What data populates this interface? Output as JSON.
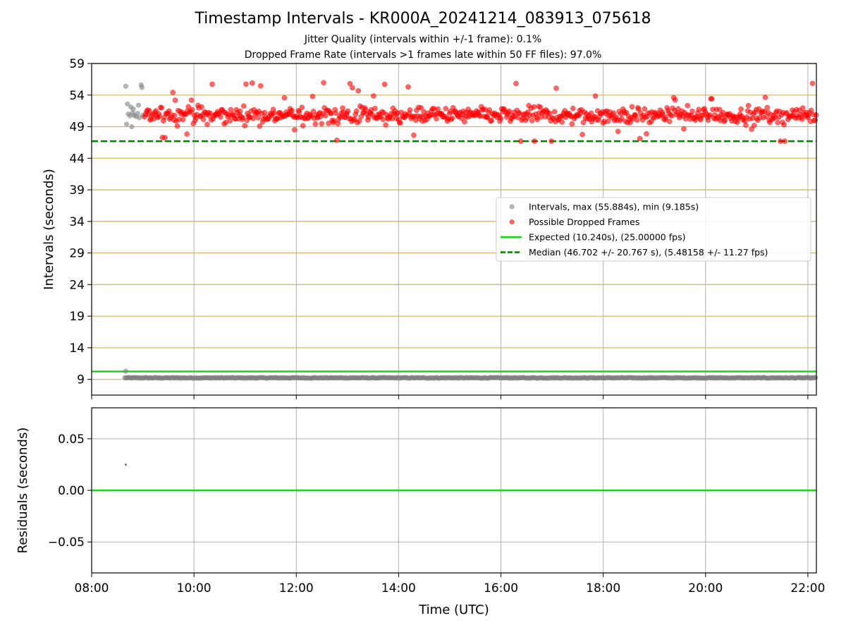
{
  "title": "Timestamp Intervals - KR000A_20241214_083913_075618",
  "subtitle_1": "Jitter Quality (intervals within +/-1 frame): 0.1%",
  "subtitle_2": "Dropped Frame Rate (intervals >1 frames late within 50 FF files): 97.0%",
  "colors": {
    "intervals": "#808080",
    "dropped": "#ff0000",
    "expected": "#00e600",
    "median": "#008000",
    "hgrid": "#d4b96a",
    "vgrid": "#b0b0b0"
  },
  "chart_data": [
    {
      "id": "top",
      "type": "scatter",
      "xlabel": "",
      "ylabel": "Intervals (seconds)",
      "xlim": [
        "08:00",
        "22:10"
      ],
      "ylim": [
        6.5,
        59
      ],
      "y_ticks": [
        9,
        14,
        19,
        24,
        29,
        34,
        39,
        44,
        49,
        54,
        59
      ],
      "x_ticks": [
        "08:00",
        "10:00",
        "12:00",
        "14:00",
        "16:00",
        "18:00",
        "20:00",
        "22:00"
      ],
      "legend_position": "center-right",
      "series": [
        {
          "name": "Intervals, max (55.884s), min (9.185s)",
          "marker": "circle",
          "color": "#808080",
          "x_range": [
            "08:39",
            "22:10"
          ],
          "y_baseline": 9.23,
          "early_points": [
            {
              "x": "08:40",
              "y": 55.4
            },
            {
              "x": "08:42",
              "y": 52.6
            },
            {
              "x": "08:43",
              "y": 51.0
            },
            {
              "x": "08:45",
              "y": 50.7
            },
            {
              "x": "08:46",
              "y": 52.1
            },
            {
              "x": "08:47",
              "y": 49.0
            },
            {
              "x": "08:48",
              "y": 51.2
            },
            {
              "x": "08:49",
              "y": 51.8
            },
            {
              "x": "08:50",
              "y": 50.8
            },
            {
              "x": "08:52",
              "y": 50.6
            },
            {
              "x": "08:54",
              "y": 51.1
            },
            {
              "x": "08:55",
              "y": 52.4
            },
            {
              "x": "08:56",
              "y": 50.4
            },
            {
              "x": "08:58",
              "y": 55.6
            },
            {
              "x": "08:59",
              "y": 55.2
            },
            {
              "x": "09:00",
              "y": 50.8
            },
            {
              "x": "08:41",
              "y": 49.4
            },
            {
              "x": "08:40",
              "y": 10.3
            }
          ]
        },
        {
          "name": "Possible Dropped Frames",
          "marker": "circle",
          "color": "#ff0000",
          "x_range": [
            "09:02",
            "22:10"
          ],
          "y_center": 50.8,
          "y_spread": [
            46.7,
            56.0
          ]
        },
        {
          "name": "Expected (10.240s), (25.00000 fps)",
          "marker": "line",
          "color": "#00e600",
          "y": 10.24
        },
        {
          "name": "Median (46.702 +/- 20.767 s), (5.48158 +/- 11.27 fps)",
          "marker": "dashed-line",
          "color": "#008000",
          "y": 46.702
        }
      ]
    },
    {
      "id": "bottom",
      "type": "scatter",
      "xlabel": "Time (UTC)",
      "ylabel": "Residuals (seconds)",
      "xlim": [
        "08:00",
        "22:10"
      ],
      "ylim": [
        -0.08,
        0.08
      ],
      "y_ticks": [
        -0.05,
        0.0,
        0.05
      ],
      "y_tick_labels": [
        "−0.05",
        "0.00",
        "0.05"
      ],
      "x_ticks": [
        "08:00",
        "10:00",
        "12:00",
        "14:00",
        "16:00",
        "18:00",
        "20:00",
        "22:00"
      ],
      "x_tick_labels": [
        "08:00",
        "10:00",
        "12:00",
        "14:00",
        "16:00",
        "18:00",
        "20:00",
        "22:00"
      ],
      "points": [
        {
          "x": "08:40",
          "y": 0.025
        }
      ],
      "zero_line": 0.0
    }
  ]
}
